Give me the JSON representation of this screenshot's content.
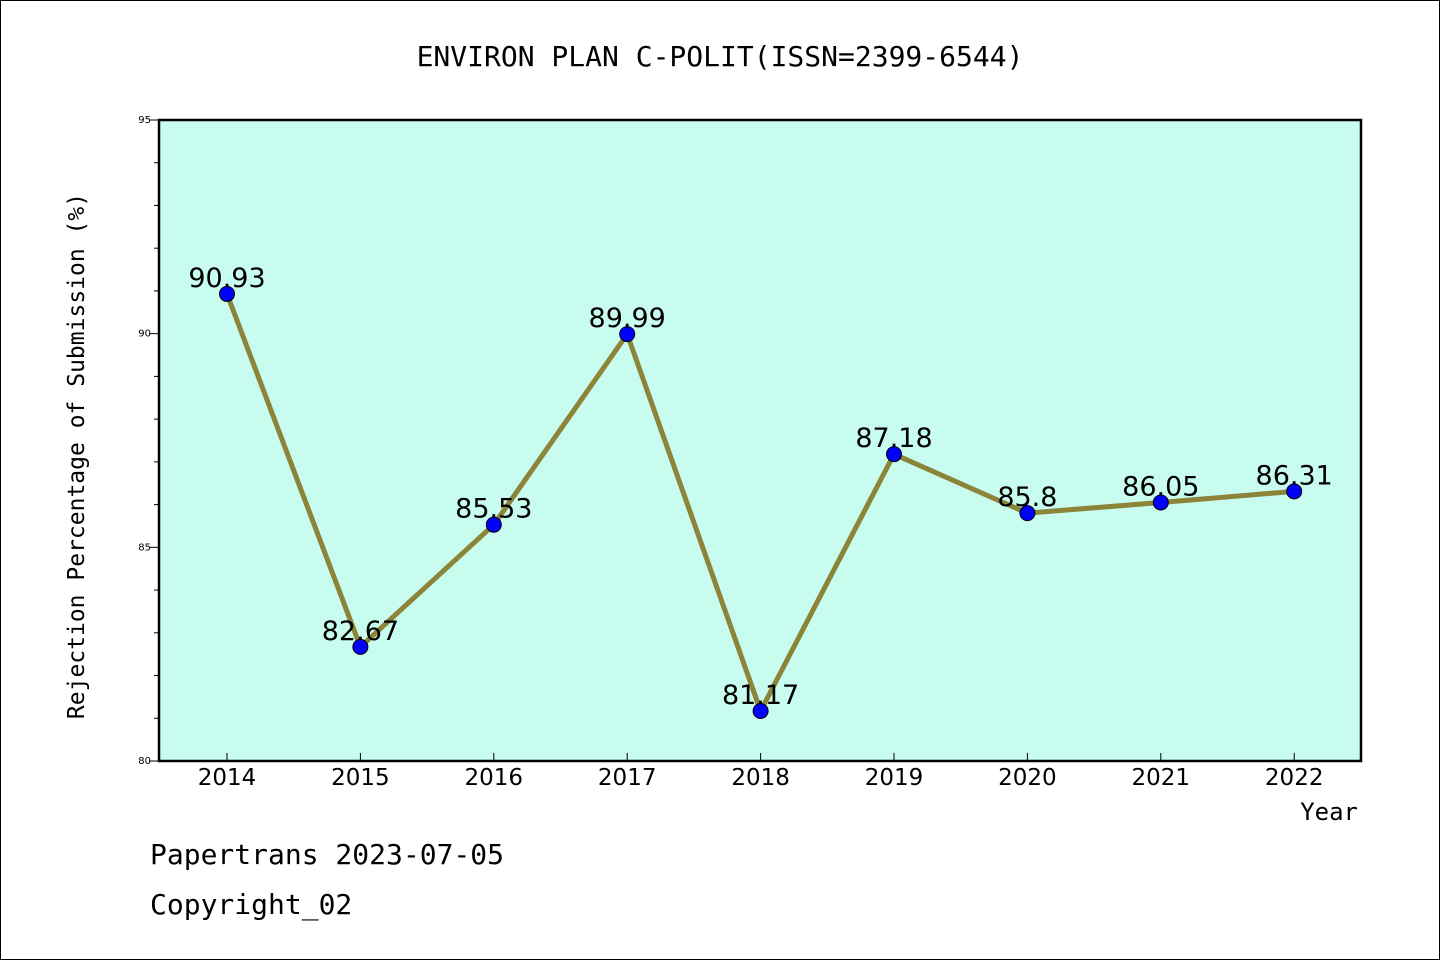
{
  "chart_data": {
    "type": "line",
    "title": "ENVIRON PLAN C-POLIT(ISSN=2399-6544)",
    "xlabel": "Year",
    "ylabel": "Rejection Percentage of Submission (%)",
    "categories": [
      "2014",
      "2015",
      "2016",
      "2017",
      "2018",
      "2019",
      "2020",
      "2021",
      "2022"
    ],
    "values": [
      90.93,
      82.67,
      85.53,
      89.99,
      81.17,
      87.18,
      85.8,
      86.05,
      86.31
    ],
    "value_labels": [
      "90.93",
      "82.67",
      "85.53",
      "89.99",
      "81.17",
      "87.18",
      "85.8",
      "86.05",
      "86.31"
    ],
    "ylim": [
      80,
      95
    ],
    "yticks": [
      "80",
      "85",
      "90",
      "95"
    ],
    "grid": false,
    "colors": {
      "plot_background": "#c8fcee",
      "line": "#8b8439",
      "marker": "#0000ff"
    }
  },
  "footer": {
    "line1": "Papertrans 2023-07-05",
    "line2": "Copyright_02"
  }
}
